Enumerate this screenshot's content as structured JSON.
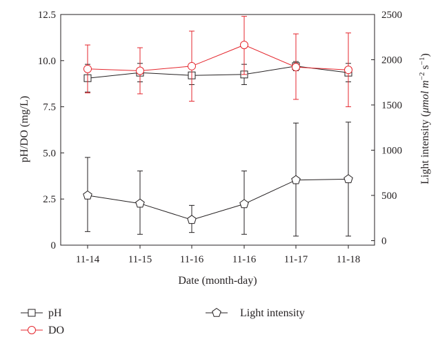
{
  "chart_data": {
    "type": "line",
    "xlabel": "Date (month-day)",
    "ylabel_left": "pH/DO (mg/L)",
    "ylabel_right_prefix": "Light intensity (",
    "ylabel_right_unit": "μmol m",
    "ylabel_right_sup1": "−2",
    "ylabel_right_s": " s",
    "ylabel_right_sup2": "−1",
    "ylabel_right_suffix": ")",
    "categories": [
      "11-14",
      "11-15",
      "11-16",
      "11-16",
      "11-17",
      "11-18"
    ],
    "left_axis": {
      "ylim": [
        0,
        12.5
      ],
      "ticks": [
        "0",
        "2.5",
        "5.0",
        "7.5",
        "10.0",
        "12.5"
      ]
    },
    "right_axis": {
      "ylim": [
        -50,
        2500
      ],
      "ticks": [
        "0",
        "500",
        "1000",
        "1500",
        "2000",
        "2500"
      ]
    },
    "series": [
      {
        "name": "pH",
        "axis": "left",
        "marker": "square",
        "color": "#231f20",
        "values": [
          9.05,
          9.35,
          9.2,
          9.25,
          9.7,
          9.35
        ],
        "err_low": [
          8.3,
          8.85,
          8.7,
          8.7,
          9.45,
          8.85
        ],
        "err_high": [
          9.8,
          9.85,
          9.7,
          9.8,
          9.95,
          9.85
        ]
      },
      {
        "name": "DO",
        "axis": "left",
        "marker": "circle",
        "color": "#e4252c",
        "values": [
          9.55,
          9.45,
          9.7,
          10.85,
          9.65,
          9.5
        ],
        "err_low": [
          8.25,
          8.2,
          7.8,
          9.25,
          7.9,
          7.5
        ],
        "err_high": [
          10.85,
          10.7,
          11.6,
          12.4,
          11.45,
          11.5
        ]
      },
      {
        "name": "Light intensity",
        "axis": "right",
        "marker": "pentagon",
        "color": "#231f20",
        "values": [
          500,
          410,
          230,
          405,
          670,
          680
        ],
        "err_low": [
          100,
          70,
          90,
          70,
          50,
          50
        ],
        "err_high": [
          920,
          770,
          390,
          770,
          1300,
          1310
        ]
      }
    ]
  }
}
